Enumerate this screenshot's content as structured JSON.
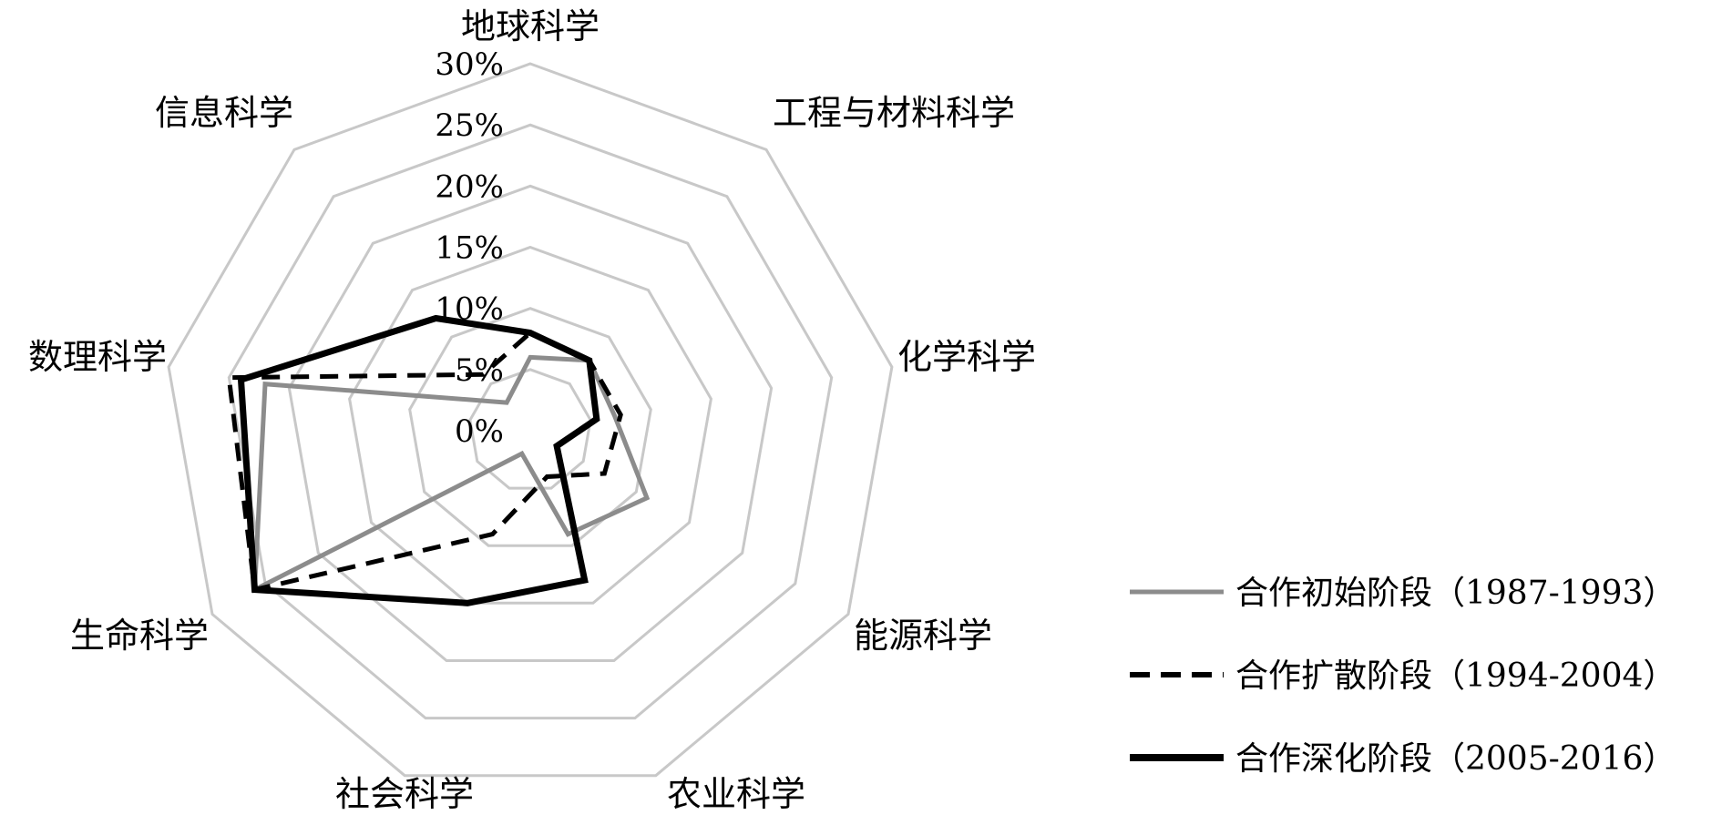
{
  "chart_data": {
    "type": "radar",
    "categories": [
      "地球科学",
      "工程与材料科学",
      "化学科学",
      "能源科学",
      "农业科学",
      "社会科学",
      "生命科学",
      "数理科学",
      "信息科学"
    ],
    "tick_labels": [
      "0%",
      "5%",
      "10%",
      "15%",
      "20%",
      "25%",
      "30%"
    ],
    "rmax": 30,
    "rings": [
      0,
      5,
      10,
      15,
      20,
      25,
      30
    ],
    "grid": true,
    "legend_position": "bottom-right",
    "colors": {
      "grid": "#c8c8c8",
      "series1": "#8c8c8c",
      "series2": "#000000",
      "series3": "#000000"
    },
    "series": [
      {
        "name": "合作初始阶段（1987-1993）",
        "style": "solid-gray",
        "values": [
          6,
          7.5,
          7,
          11,
          9,
          2,
          26,
          22,
          3
        ]
      },
      {
        "name": "合作扩散阶段（1994-2004）",
        "style": "dashed",
        "values": [
          8,
          7.5,
          7.5,
          7,
          4,
          9,
          26,
          25,
          6
        ]
      },
      {
        "name": "合作深化阶段（2005-2016）",
        "style": "solid-black",
        "values": [
          8,
          7.5,
          5.5,
          2.5,
          13,
          15,
          26,
          24,
          12
        ]
      }
    ]
  }
}
